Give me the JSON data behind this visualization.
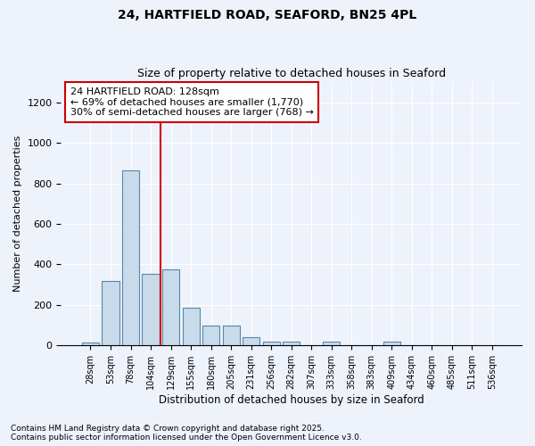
{
  "title1": "24, HARTFIELD ROAD, SEAFORD, BN25 4PL",
  "title2": "Size of property relative to detached houses in Seaford",
  "xlabel": "Distribution of detached houses by size in Seaford",
  "ylabel": "Number of detached properties",
  "categories": [
    "28sqm",
    "53sqm",
    "78sqm",
    "104sqm",
    "129sqm",
    "155sqm",
    "180sqm",
    "205sqm",
    "231sqm",
    "256sqm",
    "282sqm",
    "307sqm",
    "333sqm",
    "358sqm",
    "383sqm",
    "409sqm",
    "434sqm",
    "460sqm",
    "485sqm",
    "511sqm",
    "536sqm"
  ],
  "values": [
    15,
    318,
    865,
    355,
    375,
    185,
    100,
    100,
    42,
    18,
    18,
    0,
    18,
    0,
    0,
    18,
    0,
    0,
    0,
    0,
    0
  ],
  "bar_color": "#c9daea",
  "bar_edge_color": "#5588aa",
  "annotation_text": "24 HARTFIELD ROAD: 128sqm\n← 69% of detached houses are smaller (1,770)\n30% of semi-detached houses are larger (768) →",
  "vline_color": "#cc0000",
  "annotation_box_color": "white",
  "annotation_box_edge_color": "#cc0000",
  "ylim": [
    0,
    1300
  ],
  "yticks": [
    0,
    200,
    400,
    600,
    800,
    1000,
    1200
  ],
  "footnote1": "Contains HM Land Registry data © Crown copyright and database right 2025.",
  "footnote2": "Contains public sector information licensed under the Open Government Licence v3.0.",
  "bg_color": "#eef2fb",
  "plot_bg_color": "#eef2fb"
}
